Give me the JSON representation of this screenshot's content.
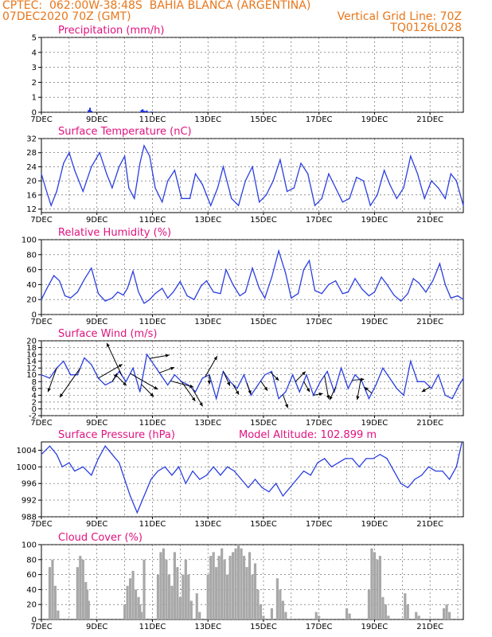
{
  "header": {
    "line1": "CPTEC:  062:00W-38:48S  BAHIA BLANCA (ARGENTINA)",
    "line2": "07DEC2020 70Z (GMT)",
    "grid_note": "Vertical Grid Line: 70Z",
    "model_tag": "TQ0126L028"
  },
  "x_labels": [
    "7DEC",
    "9DEC",
    "11DEC",
    "13DEC",
    "15DEC",
    "17DEC",
    "19DEC",
    "21DEC"
  ],
  "colors": {
    "line": "#2b3fe0",
    "title": "#e0127f",
    "header": "#e8761a",
    "bar": "#a8a8a8",
    "precip": "#1a2fe0"
  },
  "chart_data": [
    {
      "type": "bar",
      "title": "Precipitation (mm/h)",
      "ylim": [
        0,
        5
      ],
      "yticks": [
        "0",
        "1",
        "2",
        "3",
        "4",
        "5"
      ],
      "x_days": [
        1.7,
        1.75,
        1.8,
        3.6,
        3.65,
        3.7,
        3.75,
        3.8,
        3.95,
        4.0,
        4.4,
        4.6
      ],
      "values": [
        0.15,
        0.3,
        0.1,
        0.15,
        0.2,
        0.1,
        0.08,
        0.12,
        0.05,
        0.04,
        0.03,
        0.03
      ]
    },
    {
      "type": "line",
      "title": "Surface Temperature (nC)",
      "ylim": [
        11,
        32
      ],
      "yticks": [
        "12",
        "16",
        "20",
        "24",
        "28",
        "32"
      ],
      "x_days": [
        0,
        0.15,
        0.35,
        0.55,
        0.8,
        1.0,
        1.2,
        1.5,
        1.8,
        2.1,
        2.35,
        2.55,
        2.8,
        3.0,
        3.15,
        3.35,
        3.55,
        3.7,
        3.9,
        4.1,
        4.35,
        4.55,
        4.8,
        5.05,
        5.35,
        5.55,
        5.8,
        6.1,
        6.35,
        6.55,
        6.85,
        7.1,
        7.35,
        7.6,
        7.85,
        8.1,
        8.35,
        8.6,
        8.85,
        9.1,
        9.35,
        9.6,
        9.85,
        10.1,
        10.35,
        10.6,
        10.85,
        11.1,
        11.35,
        11.6,
        11.85,
        12.1,
        12.35,
        12.55,
        12.8,
        13.05,
        13.3,
        13.55,
        13.8,
        14.05,
        14.3,
        14.55,
        14.75,
        14.95,
        15.2
      ],
      "values": [
        22,
        18,
        13,
        17,
        25,
        28,
        23,
        17,
        24,
        28,
        22,
        18,
        24,
        27,
        18,
        15,
        25,
        30,
        27,
        18,
        14,
        20,
        23,
        15,
        15,
        22,
        19,
        13,
        18,
        24,
        15,
        13,
        20,
        24,
        14,
        16,
        20,
        26,
        17,
        18,
        25,
        22,
        13,
        15,
        22,
        18,
        14,
        15,
        21,
        20,
        13,
        16,
        23,
        19,
        15,
        18,
        27,
        22,
        15,
        20,
        18,
        15,
        22,
        20,
        13
      ]
    },
    {
      "type": "line",
      "title": "Relative Humidity (%)",
      "ylim": [
        0,
        100
      ],
      "yticks": [
        "0",
        "20",
        "40",
        "60",
        "80",
        "100"
      ],
      "x_days": [
        0,
        0.2,
        0.45,
        0.65,
        0.85,
        1.05,
        1.3,
        1.55,
        1.8,
        2.05,
        2.3,
        2.55,
        2.75,
        2.95,
        3.1,
        3.3,
        3.5,
        3.7,
        3.9,
        4.1,
        4.35,
        4.55,
        4.75,
        5.0,
        5.25,
        5.5,
        5.75,
        5.95,
        6.2,
        6.45,
        6.65,
        6.9,
        7.15,
        7.35,
        7.6,
        7.85,
        8.05,
        8.3,
        8.55,
        8.8,
        9.0,
        9.25,
        9.45,
        9.65,
        9.85,
        10.1,
        10.35,
        10.6,
        10.85,
        11.05,
        11.3,
        11.55,
        11.8,
        12.0,
        12.25,
        12.45,
        12.7,
        12.95,
        13.2,
        13.4,
        13.6,
        13.85,
        14.1,
        14.35,
        14.55,
        14.75,
        15.0,
        15.2
      ],
      "values": [
        20,
        35,
        52,
        45,
        25,
        22,
        30,
        47,
        62,
        28,
        18,
        22,
        30,
        26,
        35,
        58,
        30,
        15,
        20,
        28,
        35,
        22,
        30,
        44,
        25,
        20,
        38,
        45,
        30,
        28,
        60,
        40,
        25,
        30,
        62,
        35,
        22,
        50,
        85,
        55,
        22,
        28,
        60,
        72,
        32,
        28,
        40,
        45,
        28,
        30,
        48,
        34,
        25,
        30,
        50,
        40,
        26,
        18,
        28,
        48,
        42,
        30,
        45,
        68,
        40,
        22,
        25,
        20
      ]
    },
    {
      "type": "line",
      "title": "Surface Wind (m/s)",
      "ylim": [
        -2,
        20
      ],
      "yticks": [
        "-2",
        "0",
        "2",
        "4",
        "6",
        "8",
        "10",
        "12",
        "14",
        "16",
        "18",
        "20"
      ],
      "x_days": [
        0,
        0.3,
        0.55,
        0.8,
        1.05,
        1.3,
        1.55,
        1.8,
        2.05,
        2.3,
        2.55,
        2.8,
        3.05,
        3.3,
        3.55,
        3.8,
        4.05,
        4.3,
        4.55,
        4.8,
        5.05,
        5.3,
        5.55,
        5.8,
        6.05,
        6.3,
        6.55,
        6.8,
        7.05,
        7.3,
        7.55,
        7.8,
        8.05,
        8.3,
        8.55,
        8.8,
        9.05,
        9.3,
        9.55,
        9.8,
        10.05,
        10.3,
        10.55,
        10.8,
        11.05,
        11.3,
        11.55,
        11.8,
        12.05,
        12.3,
        12.55,
        12.8,
        13.05,
        13.3,
        13.55,
        13.8,
        14.05,
        14.3,
        14.55,
        14.8,
        15.05,
        15.2
      ],
      "values": [
        10,
        9,
        12,
        14,
        10,
        10,
        15,
        13,
        9,
        7,
        8,
        11,
        8,
        12,
        5,
        16,
        13,
        10,
        7,
        10,
        8,
        7,
        5,
        9,
        10,
        3,
        11,
        8,
        6,
        10,
        4,
        7,
        10,
        11,
        3,
        5,
        10,
        5,
        10,
        4,
        8,
        11,
        5,
        12,
        6,
        10,
        8,
        3,
        7,
        12,
        9,
        6,
        4,
        14,
        8,
        8,
        6,
        10,
        4,
        3,
        7,
        9
      ]
    },
    {
      "type": "line",
      "title": "Surface Pressure (hPa)",
      "subtitle": "Model Altitude: 102.899  m",
      "ylim": [
        988,
        1006
      ],
      "yticks": [
        "988",
        "992",
        "996",
        "1000",
        "1004"
      ],
      "x_days": [
        0,
        0.3,
        0.55,
        0.75,
        1.0,
        1.2,
        1.5,
        1.8,
        2.05,
        2.3,
        2.55,
        2.8,
        3.0,
        3.2,
        3.45,
        3.7,
        3.95,
        4.2,
        4.45,
        4.7,
        4.95,
        5.2,
        5.45,
        5.7,
        5.95,
        6.2,
        6.45,
        6.7,
        6.95,
        7.2,
        7.45,
        7.7,
        7.95,
        8.2,
        8.45,
        8.7,
        8.95,
        9.2,
        9.45,
        9.7,
        9.95,
        10.2,
        10.45,
        10.7,
        10.95,
        11.2,
        11.45,
        11.7,
        11.95,
        12.2,
        12.45,
        12.7,
        12.95,
        13.2,
        13.45,
        13.7,
        13.95,
        14.2,
        14.45,
        14.7,
        14.95,
        15.15
      ],
      "values": [
        1003,
        1005,
        1003,
        1000,
        1001,
        999,
        1000,
        998,
        1002,
        1005,
        1003,
        1001,
        997,
        993,
        989,
        993,
        997,
        999,
        1000,
        998,
        1000,
        996,
        999,
        997,
        998,
        1000,
        998,
        1000,
        999,
        997,
        995,
        997,
        995,
        994,
        996,
        993,
        995,
        997,
        999,
        998,
        1001,
        1002,
        1000,
        1001,
        1002,
        1002,
        1000,
        1002,
        1002,
        1003,
        1002,
        999,
        996,
        995,
        997,
        998,
        1000,
        999,
        999,
        997,
        1000,
        1006
      ]
    },
    {
      "type": "bar",
      "title": "Cloud Cover (%)",
      "ylim": [
        0,
        100
      ],
      "yticks": [
        "0",
        "20",
        "40",
        "60",
        "80",
        "100"
      ],
      "x_days": [
        0.3,
        0.4,
        0.5,
        0.6,
        1.3,
        1.4,
        1.5,
        1.6,
        1.65,
        1.7,
        3.0,
        3.1,
        3.2,
        3.3,
        3.4,
        3.5,
        3.55,
        3.6,
        3.7,
        4.2,
        4.3,
        4.4,
        4.5,
        4.6,
        4.7,
        4.8,
        4.9,
        5.0,
        5.1,
        5.2,
        5.3,
        5.4,
        5.6,
        5.7,
        6.0,
        6.1,
        6.2,
        6.3,
        6.4,
        6.5,
        6.6,
        6.7,
        6.8,
        6.9,
        7.0,
        7.1,
        7.2,
        7.3,
        7.4,
        7.5,
        7.6,
        7.7,
        7.8,
        7.9,
        8.0,
        8.3,
        8.5,
        8.6,
        8.7,
        8.8,
        9.9,
        10.0,
        11.0,
        11.1,
        11.8,
        11.9,
        12.0,
        12.1,
        12.2,
        12.3,
        12.4,
        12.5,
        13.1,
        13.2,
        13.5,
        13.6,
        14.5,
        14.6,
        14.7
      ],
      "values": [
        70,
        80,
        45,
        12,
        70,
        85,
        80,
        50,
        40,
        25,
        20,
        45,
        55,
        65,
        40,
        30,
        20,
        10,
        80,
        60,
        90,
        95,
        80,
        60,
        45,
        90,
        70,
        30,
        60,
        80,
        60,
        25,
        35,
        10,
        60,
        85,
        90,
        70,
        85,
        95,
        80,
        60,
        85,
        90,
        95,
        100,
        95,
        85,
        70,
        90,
        60,
        75,
        40,
        20,
        5,
        15,
        55,
        40,
        25,
        10,
        10,
        5,
        15,
        8,
        40,
        95,
        90,
        80,
        85,
        30,
        20,
        5,
        35,
        20,
        10,
        5,
        15,
        20,
        10
      ]
    }
  ],
  "wind_arrows": [
    {
      "day": 0.55,
      "angle_deg": 250,
      "len": 32
    },
    {
      "day": 1.4,
      "angle_deg": 235,
      "len": 45
    },
    {
      "day": 2.05,
      "angle_deg": 30,
      "len": 35
    },
    {
      "day": 2.55,
      "angle_deg": 60,
      "len": 12
    },
    {
      "day": 2.7,
      "angle_deg": -45,
      "len": 18
    },
    {
      "day": 2.9,
      "angle_deg": 115,
      "len": 45
    },
    {
      "day": 3.2,
      "angle_deg": -30,
      "len": 40
    },
    {
      "day": 3.6,
      "angle_deg": -45,
      "len": 22
    },
    {
      "day": 3.9,
      "angle_deg": 10,
      "len": 25
    },
    {
      "day": 4.25,
      "angle_deg": 20,
      "len": 20
    },
    {
      "day": 4.65,
      "angle_deg": -15,
      "len": 30
    },
    {
      "day": 5.05,
      "angle_deg": -55,
      "len": 30
    },
    {
      "day": 5.45,
      "angle_deg": -60,
      "len": 25
    },
    {
      "day": 5.9,
      "angle_deg": 60,
      "len": 30
    },
    {
      "day": 6.05,
      "angle_deg": -90,
      "len": 12
    },
    {
      "day": 6.55,
      "angle_deg": -65,
      "len": 20
    },
    {
      "day": 6.9,
      "angle_deg": -60,
      "len": 15
    },
    {
      "day": 7.4,
      "angle_deg": -70,
      "len": 15
    },
    {
      "day": 7.9,
      "angle_deg": -55,
      "len": 15
    },
    {
      "day": 8.25,
      "angle_deg": -45,
      "len": 15
    },
    {
      "day": 8.7,
      "angle_deg": -70,
      "len": 18
    },
    {
      "day": 9.15,
      "angle_deg": 45,
      "len": 18
    },
    {
      "day": 9.45,
      "angle_deg": -60,
      "len": 15
    },
    {
      "day": 9.8,
      "angle_deg": 10,
      "len": 12
    },
    {
      "day": 10.2,
      "angle_deg": -80,
      "len": 30
    },
    {
      "day": 10.6,
      "angle_deg": -115,
      "len": 18
    },
    {
      "day": 11.2,
      "angle_deg": 5,
      "len": 15
    },
    {
      "day": 11.5,
      "angle_deg": -100,
      "len": 25
    },
    {
      "day": 11.9,
      "angle_deg": 140,
      "len": 12
    },
    {
      "day": 14.0,
      "angle_deg": -150,
      "len": 12
    }
  ]
}
